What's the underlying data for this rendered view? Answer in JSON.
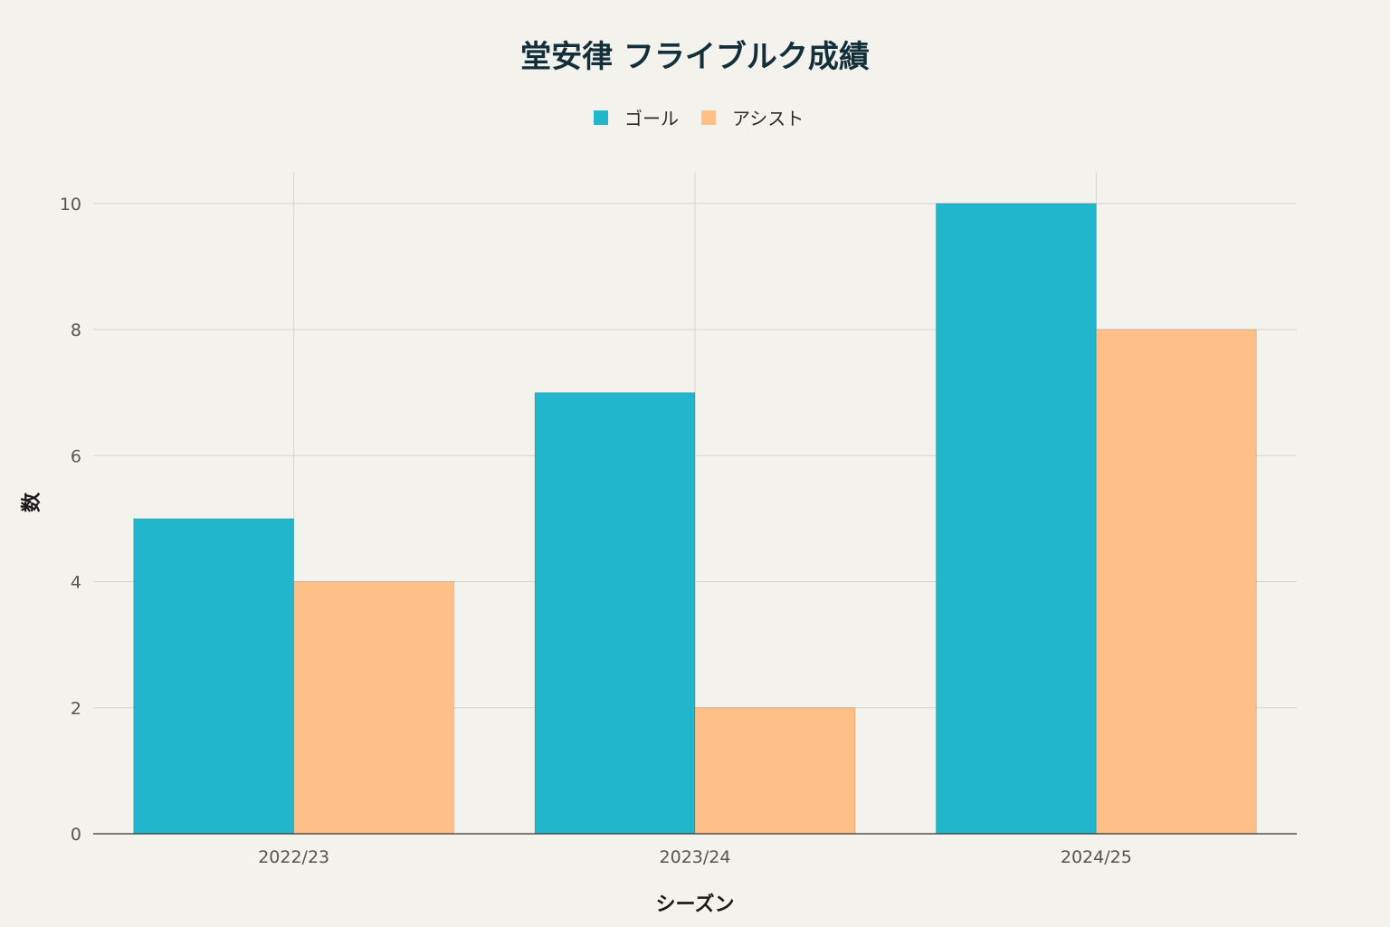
{
  "chart_data": {
    "type": "bar",
    "title": "堂安律 フライブルク成績",
    "xlabel": "シーズン",
    "ylabel": "数",
    "categories": [
      "2022/23",
      "2023/24",
      "2024/25"
    ],
    "series": [
      {
        "name": "ゴール",
        "values": [
          5,
          7,
          10
        ],
        "color": "#21b6cc"
      },
      {
        "name": "アシスト",
        "values": [
          4,
          2,
          8
        ],
        "color": "#fec086"
      }
    ],
    "ylim": [
      0,
      10.5
    ],
    "yticks": [
      0,
      2,
      4,
      6,
      8,
      10
    ],
    "grid": true,
    "legend_position": "top-center"
  }
}
